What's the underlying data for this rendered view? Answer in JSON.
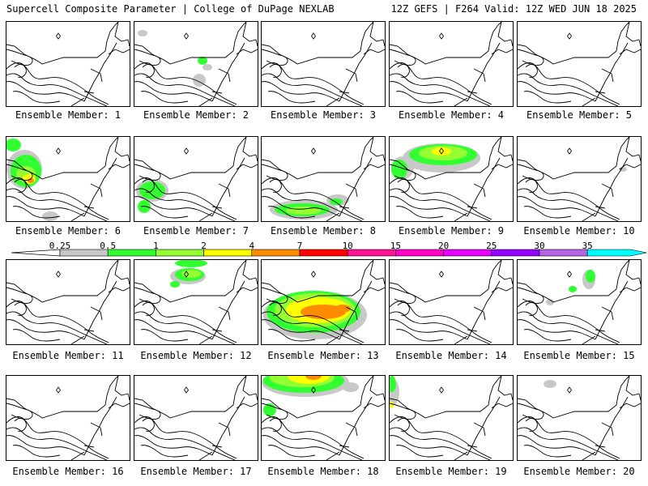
{
  "header": {
    "title_left": "Supercell Composite Parameter | College of DuPage NEXLAB",
    "title_right": "12Z GEFS | F264 Valid: 12Z WED JUN 18 2025"
  },
  "legend": {
    "labels": [
      "0.25",
      "0.5",
      "1",
      "2",
      "4",
      "7",
      "10",
      "15",
      "20",
      "25",
      "30",
      "35"
    ],
    "colors": [
      "#c8c8c8",
      "#32ff32",
      "#96ff32",
      "#ffff00",
      "#ff8c00",
      "#ff0000",
      "#ff1493",
      "#ff00c8",
      "#e600ff",
      "#9600ff",
      "#b464e6",
      "#00ffff"
    ]
  },
  "panels": [
    {
      "caption": "Ensemble Member: 1",
      "blobs": []
    },
    {
      "caption": "Ensemble Member: 2",
      "blobs": [
        [
          "gray",
          10,
          14,
          6,
          4
        ],
        [
          "gray",
          80,
          72,
          8,
          8
        ],
        [
          "green",
          84,
          48,
          6,
          5
        ],
        [
          "gray",
          90,
          56,
          6,
          4
        ]
      ]
    },
    {
      "caption": "Ensemble Member: 3",
      "blobs": []
    },
    {
      "caption": "Ensemble Member: 4",
      "blobs": []
    },
    {
      "caption": "Ensemble Member: 5",
      "blobs": []
    },
    {
      "caption": "Ensemble Member: 6",
      "blobs": [
        [
          "gray",
          22,
          40,
          22,
          24
        ],
        [
          "green",
          24,
          42,
          19,
          20
        ],
        [
          "lgreen",
          24,
          46,
          12,
          10
        ],
        [
          "yellow",
          28,
          52,
          8,
          6
        ],
        [
          "orange",
          30,
          54,
          4,
          3
        ],
        [
          "green",
          8,
          10,
          10,
          8
        ],
        [
          "gray",
          54,
          98,
          10,
          6
        ]
      ]
    },
    {
      "caption": "Ensemble Member: 7",
      "blobs": [
        [
          "gray",
          22,
          66,
          20,
          14
        ],
        [
          "green",
          22,
          66,
          16,
          11
        ],
        [
          "green",
          12,
          86,
          8,
          8
        ]
      ]
    },
    {
      "caption": "Ensemble Member: 8",
      "blobs": [
        [
          "gray",
          52,
          90,
          42,
          12
        ],
        [
          "green",
          50,
          90,
          34,
          8
        ],
        [
          "lgreen",
          52,
          91,
          22,
          5
        ],
        [
          "gray",
          94,
          78,
          14,
          7
        ],
        [
          "green",
          92,
          80,
          8,
          4
        ]
      ]
    },
    {
      "caption": "Ensemble Member: 9",
      "blobs": [
        [
          "gray",
          64,
          26,
          48,
          18
        ],
        [
          "green",
          66,
          22,
          42,
          13
        ],
        [
          "lgreen",
          66,
          20,
          30,
          9
        ],
        [
          "yellow",
          64,
          18,
          12,
          5
        ],
        [
          "gray",
          16,
          38,
          14,
          14
        ],
        [
          "green",
          12,
          40,
          10,
          12
        ]
      ]
    },
    {
      "caption": "Ensemble Member: 10",
      "blobs": [
        [
          "gray",
          130,
          40,
          5,
          3
        ]
      ]
    },
    {
      "caption": "Ensemble Member: 11",
      "blobs": []
    },
    {
      "caption": "Ensemble Member: 12",
      "blobs": [
        [
          "green",
          70,
          4,
          20,
          5
        ],
        [
          "gray",
          66,
          20,
          22,
          10
        ],
        [
          "green",
          68,
          18,
          18,
          8
        ],
        [
          "lgreen",
          70,
          17,
          12,
          5
        ],
        [
          "green",
          50,
          30,
          6,
          4
        ]
      ]
    },
    {
      "caption": "Ensemble Member: 13",
      "blobs": [
        [
          "gray",
          66,
          68,
          64,
          30
        ],
        [
          "green",
          64,
          64,
          58,
          26
        ],
        [
          "lgreen",
          66,
          62,
          50,
          21
        ],
        [
          "yellow",
          70,
          62,
          40,
          16
        ],
        [
          "orange",
          76,
          64,
          28,
          9
        ],
        [
          "orange",
          100,
          60,
          10,
          5
        ]
      ]
    },
    {
      "caption": "Ensemble Member: 14",
      "blobs": []
    },
    {
      "caption": "Ensemble Member: 15",
      "blobs": [
        [
          "gray",
          88,
          24,
          8,
          12
        ],
        [
          "green",
          90,
          20,
          6,
          8
        ],
        [
          "green",
          68,
          36,
          5,
          4
        ],
        [
          "gray",
          40,
          52,
          5,
          4
        ]
      ]
    },
    {
      "caption": "Ensemble Member: 16",
      "blobs": []
    },
    {
      "caption": "Ensemble Member: 17",
      "blobs": []
    },
    {
      "caption": "Ensemble Member: 18",
      "blobs": [
        [
          "gray",
          54,
          8,
          54,
          18
        ],
        [
          "green",
          52,
          6,
          50,
          15
        ],
        [
          "lgreen",
          50,
          2,
          40,
          12
        ],
        [
          "yellow",
          58,
          0,
          26,
          10
        ],
        [
          "orange",
          64,
          0,
          10,
          5
        ],
        [
          "green",
          10,
          42,
          8,
          8
        ],
        [
          "gray",
          110,
          14,
          10,
          6
        ]
      ]
    },
    {
      "caption": "Ensemble Member: 19",
      "blobs": [
        [
          "gray",
          4,
          20,
          8,
          16
        ],
        [
          "green",
          3,
          10,
          5,
          10
        ],
        [
          "yellow",
          2,
          36,
          3,
          4
        ]
      ]
    },
    {
      "caption": "Ensemble Member: 20",
      "blobs": [
        [
          "gray",
          40,
          10,
          8,
          5
        ]
      ]
    }
  ]
}
